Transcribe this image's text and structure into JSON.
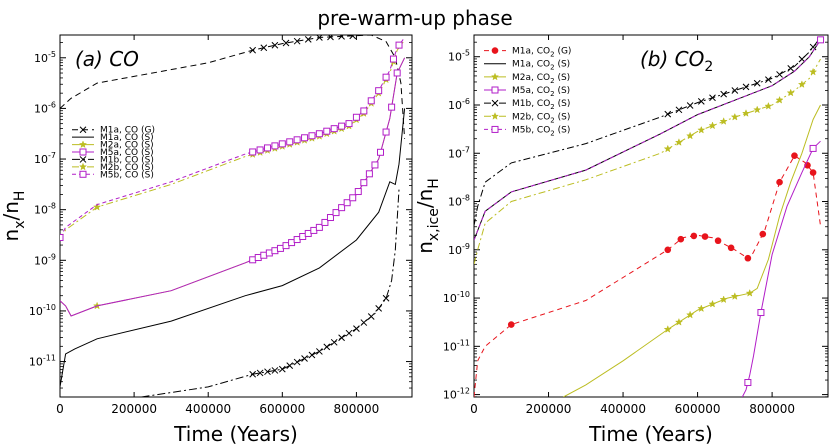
{
  "figure_title": "pre-warm-up phase",
  "chart_data": [
    {
      "type": "line",
      "panel_label": "(a) CO",
      "xlabel": "Time (Years)",
      "ylabel": "n_x/n_H",
      "xlim": [
        0,
        950000
      ],
      "ylim_log10": [
        -11.7,
        -4.55
      ],
      "xticks": [
        0,
        200000,
        400000,
        600000,
        800000
      ],
      "xtick_labels": [
        "0",
        "200000",
        "400000",
        "600000",
        "800000"
      ],
      "yticks_log10": [
        -11,
        -10,
        -9,
        -8,
        -7,
        -6,
        -5
      ],
      "ytick_labels": [
        "10-11",
        "10-10",
        "10-9",
        "10-8",
        "10-7",
        "10-6",
        "10-5"
      ],
      "legend_position": "middle-left",
      "series": [
        {
          "name": "M1a, CO (G)",
          "color": "#000000",
          "dash": "6,4",
          "marker": "x",
          "x": [
            0,
            30000,
            100000,
            250000,
            400000,
            520000,
            600000,
            700000,
            780000,
            840000,
            880000,
            905000,
            920000,
            930000
          ],
          "log10_y": [
            -6.0,
            -5.8,
            -5.5,
            -5.3,
            -5.1,
            -4.85,
            -4.72,
            -4.6,
            -4.57,
            -4.55,
            -4.68,
            -5.0,
            -5.5,
            -6.6
          ],
          "marker_x": [
            520000,
            550000,
            580000,
            610000,
            640000,
            670000,
            700000,
            730000,
            760000,
            790000
          ]
        },
        {
          "name": "M1a, CO (S)",
          "color": "#000000",
          "dash": "",
          "marker": "none",
          "x": [
            0,
            15000,
            40000,
            100000,
            300000,
            500000,
            600000,
            700000,
            800000,
            860000,
            890000,
            905000,
            915000,
            930000
          ],
          "log10_y": [
            -11.5,
            -10.85,
            -10.75,
            -10.55,
            -10.2,
            -9.7,
            -9.5,
            -9.15,
            -8.6,
            -8.05,
            -7.45,
            -7.5,
            -7.1,
            -6.0
          ]
        },
        {
          "name": "M2a, CO (S)",
          "color": "#bcbd22",
          "dash": "",
          "marker": "star",
          "x": [
            0,
            15000,
            30000,
            100000,
            300000,
            500000,
            600000,
            700000,
            800000,
            860000,
            890000,
            910000,
            930000
          ],
          "log10_y": [
            -9.8,
            -9.9,
            -10.1,
            -9.9,
            -9.6,
            -9.05,
            -8.75,
            -8.35,
            -7.7,
            -7.0,
            -6.2,
            -5.3,
            -5.0
          ],
          "marker_x": [
            100000
          ]
        },
        {
          "name": "M5a, CO (S)",
          "color": "#b21ec8",
          "dash": "",
          "marker": "square",
          "x": [
            0,
            15000,
            30000,
            100000,
            300000,
            500000,
            600000,
            700000,
            800000,
            860000,
            890000,
            910000,
            930000
          ],
          "log10_y": [
            -9.8,
            -9.9,
            -10.1,
            -9.9,
            -9.6,
            -9.05,
            -8.75,
            -8.35,
            -7.7,
            -7.0,
            -6.2,
            -5.3,
            -5.0
          ],
          "marker_x": [
            520000,
            535000,
            550000,
            565000,
            580000,
            595000,
            610000,
            625000,
            640000,
            655000,
            670000,
            685000,
            700000,
            715000,
            730000,
            745000,
            760000,
            775000,
            790000,
            805000,
            820000,
            835000,
            850000,
            865000,
            880000,
            895000,
            910000
          ]
        },
        {
          "name": "M1b, CO (S)",
          "color": "#000000",
          "dash": "8,3,2,3",
          "marker": "x",
          "x": [
            220000,
            400000,
            520000,
            600000,
            700000,
            800000,
            850000,
            880000,
            895000,
            905000,
            915000
          ],
          "log10_y": [
            -11.7,
            -11.5,
            -11.25,
            -11.15,
            -10.8,
            -10.35,
            -10.05,
            -9.75,
            -9.4,
            -8.8,
            -7.6
          ],
          "marker_x": [
            520000,
            540000,
            560000,
            580000,
            600000,
            620000,
            640000,
            660000,
            680000,
            700000,
            720000,
            740000,
            760000,
            780000,
            800000,
            820000,
            840000,
            860000,
            880000
          ]
        },
        {
          "name": "M2b, CO (S)",
          "color": "#bcbd22",
          "dash": "7,3,2,3",
          "marker": "star",
          "x": [
            0,
            15000,
            100000,
            300000,
            500000,
            600000,
            700000,
            780000,
            820000,
            860000,
            890000,
            910000,
            930000
          ],
          "log10_y": [
            -8.6,
            -8.4,
            -7.95,
            -7.5,
            -6.95,
            -6.75,
            -6.55,
            -6.35,
            -6.1,
            -5.7,
            -5.3,
            -4.85,
            -4.65
          ],
          "marker_x": [
            100000,
            520000,
            540000,
            560000,
            580000,
            600000,
            620000,
            640000,
            660000,
            680000,
            700000,
            720000,
            740000,
            760000,
            780000,
            800000,
            820000,
            840000,
            860000,
            880000,
            900000
          ]
        },
        {
          "name": "M5b, CO (S)",
          "color": "#b21ec8",
          "dash": "4,3",
          "marker": "square",
          "x": [
            0,
            15000,
            100000,
            300000,
            500000,
            600000,
            700000,
            780000,
            820000,
            860000,
            890000,
            910000,
            930000
          ],
          "log10_y": [
            -8.55,
            -8.35,
            -7.9,
            -7.45,
            -6.9,
            -6.7,
            -6.5,
            -6.3,
            -6.05,
            -5.65,
            -5.25,
            -4.8,
            -4.6
          ],
          "marker_x": [
            0,
            520000,
            540000,
            560000,
            580000,
            600000,
            620000,
            640000,
            660000,
            680000,
            700000,
            720000,
            740000,
            760000,
            780000,
            800000,
            820000,
            840000,
            860000,
            880000,
            900000,
            915000
          ]
        }
      ]
    },
    {
      "type": "line",
      "panel_label": "(b) CO2",
      "xlabel": "Time (Years)",
      "ylabel": "n_x,ice/n_H",
      "xlim": [
        0,
        950000
      ],
      "ylim_log10": [
        -12.05,
        -4.55
      ],
      "xticks": [
        0,
        200000,
        400000,
        600000,
        800000
      ],
      "xtick_labels": [
        "0",
        "200000",
        "400000",
        "600000",
        "800000"
      ],
      "yticks_log10": [
        -12,
        -11,
        -10,
        -9,
        -8,
        -7,
        -6,
        -5
      ],
      "ytick_labels": [
        "10-12",
        "10-11",
        "10-10",
        "10-9",
        "10-8",
        "10-7",
        "10-6",
        "10-5"
      ],
      "legend_position": "top-left",
      "series": [
        {
          "name": "M1a, CO2 (G)",
          "color": "#e8141c",
          "dash": "5,4",
          "marker": "dot",
          "x": [
            0,
            10000,
            30000,
            100000,
            300000,
            520000,
            560000,
            600000,
            640000,
            700000,
            740000,
            780000,
            820000,
            860000,
            890000,
            910000,
            930000
          ],
          "log10_y": [
            -12.05,
            -11.3,
            -11.0,
            -10.55,
            -10.05,
            -9.0,
            -8.75,
            -8.7,
            -8.75,
            -9.0,
            -9.2,
            -8.6,
            -7.6,
            -7.05,
            -7.2,
            -7.4,
            -8.5
          ],
          "marker_x": [
            100000,
            520000,
            555000,
            590000,
            620000,
            655000,
            690000,
            735000,
            775000,
            820000,
            860000,
            895000,
            910000
          ]
        },
        {
          "name": "M1a, CO2 (S)",
          "color": "#000000",
          "dash": "",
          "marker": "none",
          "x": [
            0,
            10000,
            30000,
            100000,
            300000,
            500000,
            600000,
            700000,
            800000,
            860000,
            900000,
            930000
          ],
          "log10_y": [
            -8.8,
            -8.6,
            -8.2,
            -7.8,
            -7.35,
            -6.6,
            -6.2,
            -5.9,
            -5.6,
            -5.3,
            -5.0,
            -4.65
          ]
        },
        {
          "name": "M2a, CO2 (S)",
          "color": "#bcbd22",
          "dash": "",
          "marker": "star",
          "x": [
            240000,
            300000,
            400000,
            520000,
            600000,
            680000,
            740000,
            760000,
            790000,
            820000,
            850000,
            880000,
            910000,
            930000
          ],
          "log10_y": [
            -12.05,
            -11.8,
            -11.3,
            -10.65,
            -10.25,
            -10.0,
            -9.9,
            -9.8,
            -9.2,
            -8.3,
            -7.6,
            -7.0,
            -6.3,
            -6.0
          ],
          "marker_x": [
            520000,
            550000,
            580000,
            610000,
            640000,
            670000,
            700000,
            740000
          ]
        },
        {
          "name": "M5a, CO2 (S)",
          "color": "#b21ec8",
          "dash": "",
          "marker": "square",
          "x": [
            720000,
            730000,
            740000,
            750000,
            770000,
            800000,
            840000,
            880000,
            910000,
            930000
          ],
          "log10_y": [
            -12.05,
            -11.9,
            -11.6,
            -11.2,
            -10.3,
            -9.1,
            -8.1,
            -7.4,
            -6.9,
            -6.75
          ],
          "marker_x": [
            735000,
            770000,
            910000
          ]
        },
        {
          "name": "M1b, CO2 (S)",
          "color": "#000000",
          "dash": "7,3,2,3",
          "marker": "x",
          "x": [
            0,
            10000,
            30000,
            100000,
            300000,
            500000,
            600000,
            700000,
            800000,
            860000,
            900000,
            930000
          ],
          "log10_y": [
            -8.5,
            -8.1,
            -7.6,
            -7.2,
            -6.8,
            -6.25,
            -5.95,
            -5.7,
            -5.45,
            -5.2,
            -4.9,
            -4.6
          ],
          "marker_x": [
            520000,
            550000,
            580000,
            610000,
            640000,
            670000,
            700000,
            730000,
            760000,
            790000,
            820000,
            850000,
            880000,
            910000
          ]
        },
        {
          "name": "M2b, CO2 (S)",
          "color": "#bcbd22",
          "dash": "7,3,2,3",
          "marker": "star",
          "x": [
            0,
            10000,
            30000,
            100000,
            300000,
            500000,
            600000,
            700000,
            800000,
            860000,
            900000,
            930000
          ],
          "log10_y": [
            -9.3,
            -9.0,
            -8.45,
            -8.0,
            -7.55,
            -7.0,
            -6.55,
            -6.25,
            -6.0,
            -5.7,
            -5.45,
            -5.05
          ],
          "marker_x": [
            520000,
            550000,
            580000,
            610000,
            640000,
            670000,
            700000,
            730000,
            760000,
            790000,
            820000,
            850000,
            880000,
            910000
          ]
        },
        {
          "name": "M5b, CO2 (S)",
          "color": "#b21ec8",
          "dash": "4,3",
          "marker": "square",
          "x": [
            0,
            10000,
            30000,
            100000,
            300000,
            500000,
            600000,
            700000,
            800000,
            860000,
            900000,
            930000
          ],
          "log10_y": [
            -8.8,
            -8.6,
            -8.2,
            -7.8,
            -7.35,
            -6.6,
            -6.2,
            -5.9,
            -5.6,
            -5.3,
            -5.0,
            -4.65
          ],
          "marker_x": [
            930000
          ]
        }
      ]
    }
  ]
}
